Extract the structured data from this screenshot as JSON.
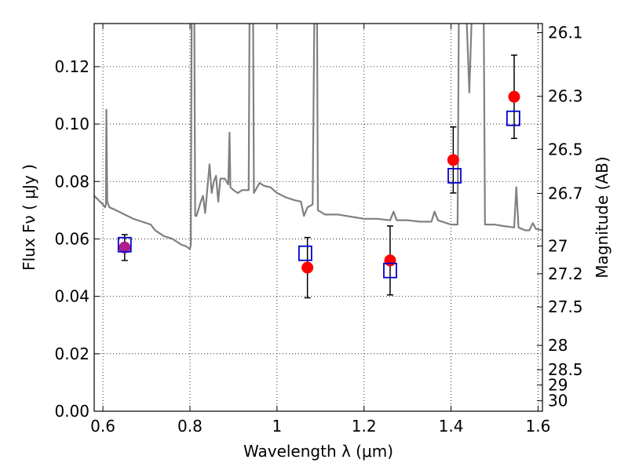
{
  "chart_data": {
    "type": "scatter",
    "xlabel": "Wavelength  λ (μm)",
    "ylabel": "Flux  Fν  ( μJy )",
    "ylabel_right": "Magnitude (AB)",
    "xlim": [
      0.58,
      1.61
    ],
    "ylim": [
      0.0,
      0.135
    ],
    "grid": true,
    "x_ticks": [
      0.6,
      0.8,
      1.0,
      1.2,
      1.4,
      1.6
    ],
    "x_tick_labels": [
      "0.6",
      "0.8",
      "1",
      "1.2",
      "1.4",
      "1.6"
    ],
    "y_ticks": [
      0.0,
      0.02,
      0.04,
      0.06,
      0.08,
      0.1,
      0.12
    ],
    "y_tick_labels": [
      "0.00",
      "0.02",
      "0.04",
      "0.06",
      "0.08",
      "0.10",
      "0.12"
    ],
    "mag_ticks": [
      {
        "label": "26.1",
        "mag": 26.1
      },
      {
        "label": "26.3",
        "mag": 26.3
      },
      {
        "label": "26.5",
        "mag": 26.5
      },
      {
        "label": "26.7",
        "mag": 26.7
      },
      {
        "label": "27",
        "mag": 27.0
      },
      {
        "label": "27.2",
        "mag": 27.2
      },
      {
        "label": "27.5",
        "mag": 27.5
      },
      {
        "label": "28",
        "mag": 28.0
      },
      {
        "label": "28.5",
        "mag": 28.5
      },
      {
        "label": "29",
        "mag": 29.0
      },
      {
        "label": "30",
        "mag": 30.0
      }
    ],
    "series": [
      {
        "kind": "spectrum",
        "color": "#808080",
        "points": [
          [
            0.58,
            0.075
          ],
          [
            0.6,
            0.072
          ],
          [
            0.605,
            0.071
          ],
          [
            0.607,
            0.072
          ],
          [
            0.608,
            0.105
          ],
          [
            0.61,
            0.073
          ],
          [
            0.615,
            0.071
          ],
          [
            0.63,
            0.07
          ],
          [
            0.65,
            0.0685
          ],
          [
            0.67,
            0.067
          ],
          [
            0.69,
            0.066
          ],
          [
            0.71,
            0.065
          ],
          [
            0.72,
            0.063
          ],
          [
            0.74,
            0.061
          ],
          [
            0.76,
            0.06
          ],
          [
            0.78,
            0.058
          ],
          [
            0.79,
            0.0575
          ],
          [
            0.8,
            0.0565
          ],
          [
            0.802,
            0.058
          ],
          [
            0.804,
            0.14
          ],
          [
            0.81,
            0.14
          ],
          [
            0.812,
            0.068
          ],
          [
            0.815,
            0.068
          ],
          [
            0.825,
            0.073
          ],
          [
            0.83,
            0.075
          ],
          [
            0.835,
            0.069
          ],
          [
            0.845,
            0.086
          ],
          [
            0.85,
            0.076
          ],
          [
            0.855,
            0.08
          ],
          [
            0.86,
            0.082
          ],
          [
            0.865,
            0.073
          ],
          [
            0.87,
            0.081
          ],
          [
            0.88,
            0.081
          ],
          [
            0.888,
            0.079
          ],
          [
            0.891,
            0.097
          ],
          [
            0.893,
            0.078
          ],
          [
            0.9,
            0.077
          ],
          [
            0.91,
            0.076
          ],
          [
            0.92,
            0.077
          ],
          [
            0.935,
            0.077
          ],
          [
            0.937,
            0.14
          ],
          [
            0.945,
            0.14
          ],
          [
            0.947,
            0.076
          ],
          [
            0.96,
            0.0795
          ],
          [
            0.97,
            0.0785
          ],
          [
            0.985,
            0.078
          ],
          [
            1.0,
            0.076
          ],
          [
            1.02,
            0.0745
          ],
          [
            1.04,
            0.0735
          ],
          [
            1.055,
            0.073
          ],
          [
            1.062,
            0.068
          ],
          [
            1.07,
            0.071
          ],
          [
            1.082,
            0.072
          ],
          [
            1.086,
            0.14
          ],
          [
            1.092,
            0.14
          ],
          [
            1.094,
            0.07
          ],
          [
            1.11,
            0.0685
          ],
          [
            1.14,
            0.0685
          ],
          [
            1.16,
            0.068
          ],
          [
            1.18,
            0.0675
          ],
          [
            1.2,
            0.067
          ],
          [
            1.23,
            0.067
          ],
          [
            1.26,
            0.0665
          ],
          [
            1.268,
            0.0695
          ],
          [
            1.275,
            0.0665
          ],
          [
            1.3,
            0.0665
          ],
          [
            1.33,
            0.066
          ],
          [
            1.355,
            0.066
          ],
          [
            1.362,
            0.0695
          ],
          [
            1.37,
            0.0665
          ],
          [
            1.4,
            0.065
          ],
          [
            1.415,
            0.065
          ],
          [
            1.418,
            0.14
          ],
          [
            1.435,
            0.14
          ],
          [
            1.442,
            0.111
          ],
          [
            1.448,
            0.14
          ],
          [
            1.462,
            0.14
          ],
          [
            1.475,
            0.14
          ],
          [
            1.478,
            0.065
          ],
          [
            1.5,
            0.065
          ],
          [
            1.52,
            0.0645
          ],
          [
            1.545,
            0.064
          ],
          [
            1.55,
            0.078
          ],
          [
            1.555,
            0.064
          ],
          [
            1.57,
            0.063
          ],
          [
            1.58,
            0.063
          ],
          [
            1.588,
            0.0655
          ],
          [
            1.595,
            0.0635
          ],
          [
            1.61,
            0.063
          ]
        ]
      },
      {
        "kind": "observed",
        "marker": "circle",
        "color": "#ff0000",
        "points": [
          {
            "x": 0.65,
            "y": 0.057,
            "err": 0.0045
          },
          {
            "x": 1.07,
            "y": 0.05,
            "err": 0.0105
          },
          {
            "x": 1.26,
            "y": 0.0525,
            "err": 0.012
          },
          {
            "x": 1.405,
            "y": 0.0875,
            "err": 0.0115
          },
          {
            "x": 1.545,
            "y": 0.1095,
            "err": 0.0145
          }
        ]
      },
      {
        "kind": "model",
        "marker": "square",
        "color": "#0000cc",
        "points": [
          {
            "x": 0.65,
            "y": 0.058
          },
          {
            "x": 1.065,
            "y": 0.055
          },
          {
            "x": 1.26,
            "y": 0.049
          },
          {
            "x": 1.408,
            "y": 0.082
          },
          {
            "x": 1.543,
            "y": 0.102
          }
        ]
      }
    ],
    "overlap_color": "#b01e88"
  }
}
